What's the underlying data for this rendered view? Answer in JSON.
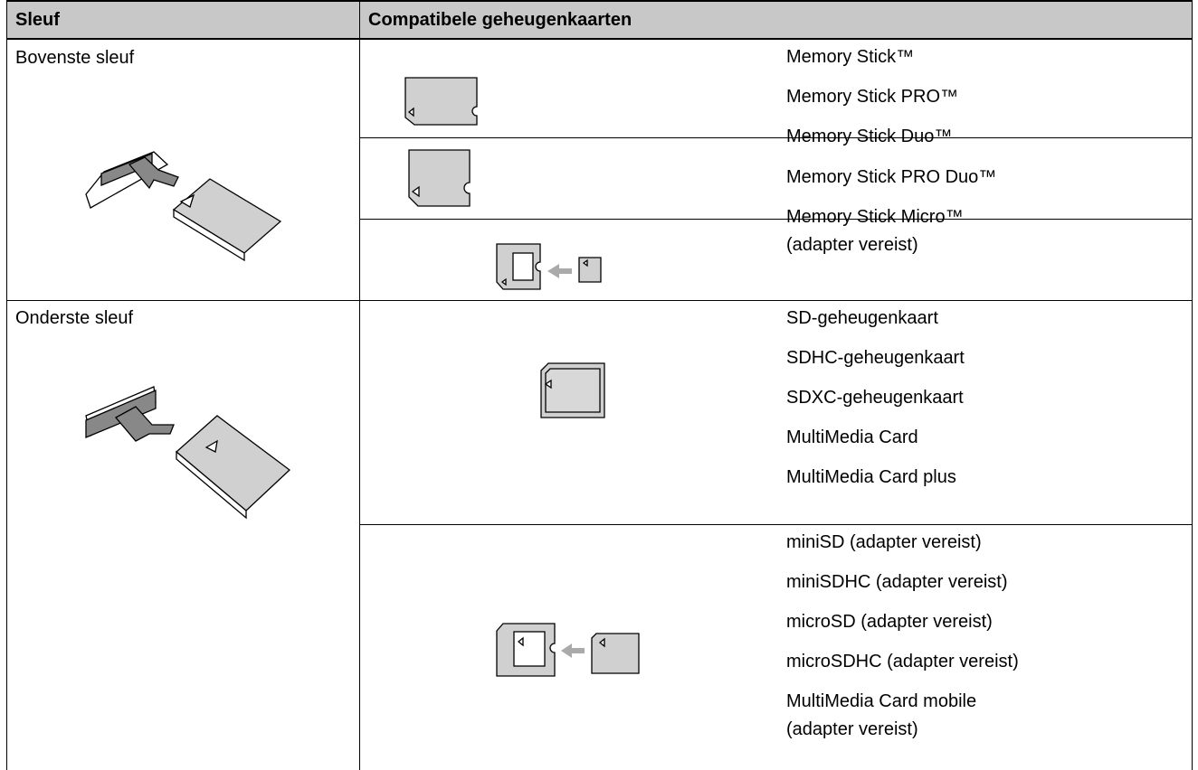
{
  "table": {
    "headers": [
      "Sleuf",
      "Compatibele geheugenkaarten"
    ],
    "slots": [
      {
        "name": "Bovenste sleuf",
        "cards": [
          {
            "items": [
              [
                "Memory Stick™"
              ],
              [
                "Memory Stick PRO™"
              ]
            ]
          },
          {
            "items": [
              [
                "Memory Stick Duo™"
              ],
              [
                "Memory Stick PRO Duo™"
              ]
            ]
          },
          {
            "items": [
              [
                "Memory Stick Micro™",
                "(adapter vereist)"
              ]
            ]
          }
        ]
      },
      {
        "name": "Onderste sleuf",
        "cards": [
          {
            "items": [
              [
                "SD-geheugenkaart"
              ],
              [
                "SDHC-geheugenkaart"
              ],
              [
                "SDXC-geheugenkaart"
              ],
              [
                "MultiMedia Card"
              ],
              [
                "MultiMedia Card plus"
              ]
            ]
          },
          {
            "items": [
              [
                "miniSD (adapter vereist)"
              ],
              [
                "miniSDHC (adapter vereist)"
              ],
              [
                "microSD (adapter vereist)"
              ],
              [
                "microSDHC (adapter vereist)"
              ],
              [
                "MultiMedia Card mobile",
                "(adapter vereist)"
              ]
            ]
          }
        ]
      }
    ]
  }
}
